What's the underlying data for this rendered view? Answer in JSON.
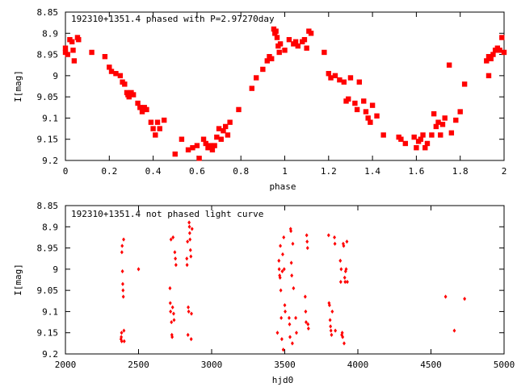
{
  "colors": {
    "points": "#ff0000",
    "axes": "#000000",
    "background": "#ffffff"
  },
  "chart_data": [
    {
      "type": "scatter",
      "title": "192310+1351.4 phased with P=2.97270day",
      "xlabel": "phase",
      "ylabel": "I[mag]",
      "xlim": [
        0,
        2
      ],
      "ylim": [
        8.85,
        9.2
      ],
      "y_inverted": true,
      "grid": false,
      "legend": "none",
      "marker": "filled-star",
      "x_ticks": [
        "0",
        "0.2",
        "0.4",
        "0.6",
        "0.8",
        "1",
        "1.2",
        "1.4",
        "1.6",
        "1.8",
        "2"
      ],
      "y_ticks": [
        "8.85",
        "8.9",
        "8.95",
        "9",
        "9.05",
        "9.1",
        "9.15",
        "9.2"
      ],
      "points": [
        [
          0.0,
          8.935
        ],
        [
          0.0,
          8.945
        ],
        [
          0.01,
          8.95
        ],
        [
          0.02,
          8.915
        ],
        [
          0.03,
          8.92
        ],
        [
          0.035,
          8.94
        ],
        [
          0.04,
          8.965
        ],
        [
          0.055,
          8.91
        ],
        [
          0.06,
          8.915
        ],
        [
          0.12,
          8.945
        ],
        [
          0.18,
          8.955
        ],
        [
          0.2,
          8.98
        ],
        [
          0.21,
          8.99
        ],
        [
          0.23,
          8.995
        ],
        [
          0.25,
          9.0
        ],
        [
          0.26,
          9.015
        ],
        [
          0.27,
          9.02
        ],
        [
          0.28,
          9.04
        ],
        [
          0.285,
          9.045
        ],
        [
          0.29,
          9.05
        ],
        [
          0.3,
          9.04
        ],
        [
          0.31,
          9.045
        ],
        [
          0.33,
          9.065
        ],
        [
          0.34,
          9.075
        ],
        [
          0.35,
          9.085
        ],
        [
          0.36,
          9.075
        ],
        [
          0.37,
          9.08
        ],
        [
          0.39,
          9.11
        ],
        [
          0.4,
          9.125
        ],
        [
          0.41,
          9.14
        ],
        [
          0.42,
          9.11
        ],
        [
          0.43,
          9.125
        ],
        [
          0.45,
          9.105
        ],
        [
          0.5,
          9.185
        ],
        [
          0.53,
          9.15
        ],
        [
          0.56,
          9.175
        ],
        [
          0.58,
          9.17
        ],
        [
          0.6,
          9.165
        ],
        [
          0.61,
          9.195
        ],
        [
          0.63,
          9.15
        ],
        [
          0.64,
          9.16
        ],
        [
          0.65,
          9.17
        ],
        [
          0.66,
          9.165
        ],
        [
          0.67,
          9.175
        ],
        [
          0.68,
          9.165
        ],
        [
          0.69,
          9.145
        ],
        [
          0.7,
          9.125
        ],
        [
          0.71,
          9.15
        ],
        [
          0.72,
          9.13
        ],
        [
          0.73,
          9.12
        ],
        [
          0.74,
          9.14
        ],
        [
          0.75,
          9.11
        ],
        [
          0.79,
          9.08
        ],
        [
          0.85,
          9.03
        ],
        [
          0.87,
          9.005
        ],
        [
          0.9,
          8.985
        ],
        [
          0.92,
          8.965
        ],
        [
          0.93,
          8.955
        ],
        [
          0.94,
          8.96
        ],
        [
          0.95,
          8.89
        ],
        [
          0.955,
          8.9
        ],
        [
          0.96,
          8.895
        ],
        [
          0.965,
          8.91
        ],
        [
          0.97,
          8.93
        ],
        [
          0.975,
          8.945
        ],
        [
          0.98,
          8.925
        ],
        [
          1.0,
          8.94
        ],
        [
          1.02,
          8.915
        ],
        [
          1.04,
          8.925
        ],
        [
          1.05,
          8.92
        ],
        [
          1.06,
          8.93
        ],
        [
          1.08,
          8.92
        ],
        [
          1.09,
          8.915
        ],
        [
          1.1,
          8.935
        ],
        [
          1.11,
          8.895
        ],
        [
          1.12,
          8.9
        ],
        [
          1.18,
          8.945
        ],
        [
          1.2,
          8.995
        ],
        [
          1.21,
          9.005
        ],
        [
          1.23,
          9.0
        ],
        [
          1.25,
          9.01
        ],
        [
          1.27,
          9.015
        ],
        [
          1.28,
          9.06
        ],
        [
          1.29,
          9.055
        ],
        [
          1.3,
          9.005
        ],
        [
          1.32,
          9.065
        ],
        [
          1.33,
          9.08
        ],
        [
          1.34,
          9.015
        ],
        [
          1.36,
          9.06
        ],
        [
          1.37,
          9.085
        ],
        [
          1.38,
          9.1
        ],
        [
          1.39,
          9.11
        ],
        [
          1.4,
          9.07
        ],
        [
          1.42,
          9.095
        ],
        [
          1.45,
          9.14
        ],
        [
          1.52,
          9.145
        ],
        [
          1.53,
          9.15
        ],
        [
          1.55,
          9.16
        ],
        [
          1.59,
          9.145
        ],
        [
          1.6,
          9.17
        ],
        [
          1.61,
          9.155
        ],
        [
          1.62,
          9.15
        ],
        [
          1.63,
          9.14
        ],
        [
          1.64,
          9.17
        ],
        [
          1.65,
          9.16
        ],
        [
          1.67,
          9.14
        ],
        [
          1.68,
          9.09
        ],
        [
          1.69,
          9.12
        ],
        [
          1.7,
          9.11
        ],
        [
          1.71,
          9.14
        ],
        [
          1.72,
          9.115
        ],
        [
          1.73,
          9.1
        ],
        [
          1.75,
          8.975
        ],
        [
          1.76,
          9.135
        ],
        [
          1.78,
          9.105
        ],
        [
          1.8,
          9.085
        ],
        [
          1.82,
          9.02
        ],
        [
          1.92,
          8.965
        ],
        [
          1.93,
          8.955
        ],
        [
          1.94,
          8.96
        ],
        [
          1.95,
          8.95
        ],
        [
          1.96,
          8.94
        ],
        [
          1.97,
          8.935
        ],
        [
          1.98,
          8.94
        ],
        [
          1.99,
          8.91
        ],
        [
          2.0,
          8.945
        ],
        [
          1.93,
          9.0
        ]
      ]
    },
    {
      "type": "scatter",
      "title": "192310+1351.4 not phased light curve",
      "xlabel": "hjd0",
      "ylabel": "I[mag]",
      "xlim": [
        2000,
        5000
      ],
      "ylim": [
        8.85,
        9.2
      ],
      "y_inverted": true,
      "grid": false,
      "legend": "none",
      "marker": "filled-diamond",
      "x_ticks": [
        "2000",
        "2500",
        "3000",
        "3500",
        "4000",
        "4500",
        "5000"
      ],
      "y_ticks": [
        "8.85",
        "8.9",
        "8.95",
        "9",
        "9.05",
        "9.1",
        "9.15",
        "9.2"
      ],
      "points": [
        [
          2380,
          9.165
        ],
        [
          2382,
          9.16
        ],
        [
          2384,
          9.15
        ],
        [
          2385,
          9.17
        ],
        [
          2386,
          8.96
        ],
        [
          2388,
          8.945
        ],
        [
          2390,
          9.005
        ],
        [
          2392,
          9.035
        ],
        [
          2394,
          9.05
        ],
        [
          2396,
          9.065
        ],
        [
          2398,
          8.93
        ],
        [
          2400,
          9.145
        ],
        [
          2402,
          9.17
        ],
        [
          2500,
          9.0
        ],
        [
          2715,
          9.045
        ],
        [
          2717,
          9.08
        ],
        [
          2719,
          9.1
        ],
        [
          2722,
          8.93
        ],
        [
          2725,
          9.125
        ],
        [
          2728,
          9.155
        ],
        [
          2730,
          9.16
        ],
        [
          2733,
          9.09
        ],
        [
          2736,
          8.925
        ],
        [
          2740,
          9.105
        ],
        [
          2743,
          9.12
        ],
        [
          2748,
          8.96
        ],
        [
          2752,
          8.975
        ],
        [
          2756,
          8.99
        ],
        [
          2830,
          8.975
        ],
        [
          2832,
          8.99
        ],
        [
          2835,
          8.935
        ],
        [
          2838,
          9.155
        ],
        [
          2840,
          9.09
        ],
        [
          2843,
          9.1
        ],
        [
          2846,
          8.89
        ],
        [
          2848,
          8.9
        ],
        [
          2850,
          8.915
        ],
        [
          2852,
          8.93
        ],
        [
          2855,
          8.955
        ],
        [
          2858,
          8.97
        ],
        [
          2860,
          9.165
        ],
        [
          2862,
          9.105
        ],
        [
          2866,
          8.905
        ],
        [
          3450,
          9.15
        ],
        [
          3460,
          8.98
        ],
        [
          3462,
          9.0
        ],
        [
          3465,
          9.015
        ],
        [
          3468,
          9.02
        ],
        [
          3470,
          8.945
        ],
        [
          3473,
          9.05
        ],
        [
          3476,
          9.115
        ],
        [
          3480,
          9.165
        ],
        [
          3483,
          9.005
        ],
        [
          3486,
          8.965
        ],
        [
          3490,
          9.19
        ],
        [
          3493,
          8.925
        ],
        [
          3496,
          9.0
        ],
        [
          3500,
          9.085
        ],
        [
          3503,
          9.1
        ],
        [
          3530,
          9.115
        ],
        [
          3533,
          9.13
        ],
        [
          3536,
          9.16
        ],
        [
          3540,
          8.905
        ],
        [
          3542,
          8.91
        ],
        [
          3545,
          8.985
        ],
        [
          3548,
          9.015
        ],
        [
          3552,
          9.175
        ],
        [
          3555,
          8.94
        ],
        [
          3560,
          9.045
        ],
        [
          3575,
          9.115
        ],
        [
          3580,
          9.15
        ],
        [
          3640,
          9.065
        ],
        [
          3643,
          9.1
        ],
        [
          3646,
          9.125
        ],
        [
          3650,
          8.92
        ],
        [
          3653,
          8.935
        ],
        [
          3656,
          8.95
        ],
        [
          3659,
          9.13
        ],
        [
          3662,
          9.14
        ],
        [
          3800,
          8.92
        ],
        [
          3803,
          9.08
        ],
        [
          3806,
          9.085
        ],
        [
          3810,
          9.12
        ],
        [
          3813,
          9.135
        ],
        [
          3816,
          9.145
        ],
        [
          3820,
          9.155
        ],
        [
          3825,
          9.1
        ],
        [
          3840,
          8.925
        ],
        [
          3843,
          8.94
        ],
        [
          3846,
          9.145
        ],
        [
          3880,
          8.98
        ],
        [
          3883,
          9.03
        ],
        [
          3886,
          9.0
        ],
        [
          3890,
          9.155
        ],
        [
          3893,
          9.15
        ],
        [
          3896,
          9.16
        ],
        [
          3900,
          8.94
        ],
        [
          3903,
          8.945
        ],
        [
          3906,
          9.175
        ],
        [
          3910,
          9.02
        ],
        [
          3913,
          9.03
        ],
        [
          3916,
          9.005
        ],
        [
          3920,
          9.0
        ],
        [
          3925,
          8.935
        ],
        [
          3928,
          9.03
        ],
        [
          4600,
          9.065
        ],
        [
          4660,
          9.145
        ],
        [
          4730,
          9.07
        ]
      ]
    }
  ]
}
